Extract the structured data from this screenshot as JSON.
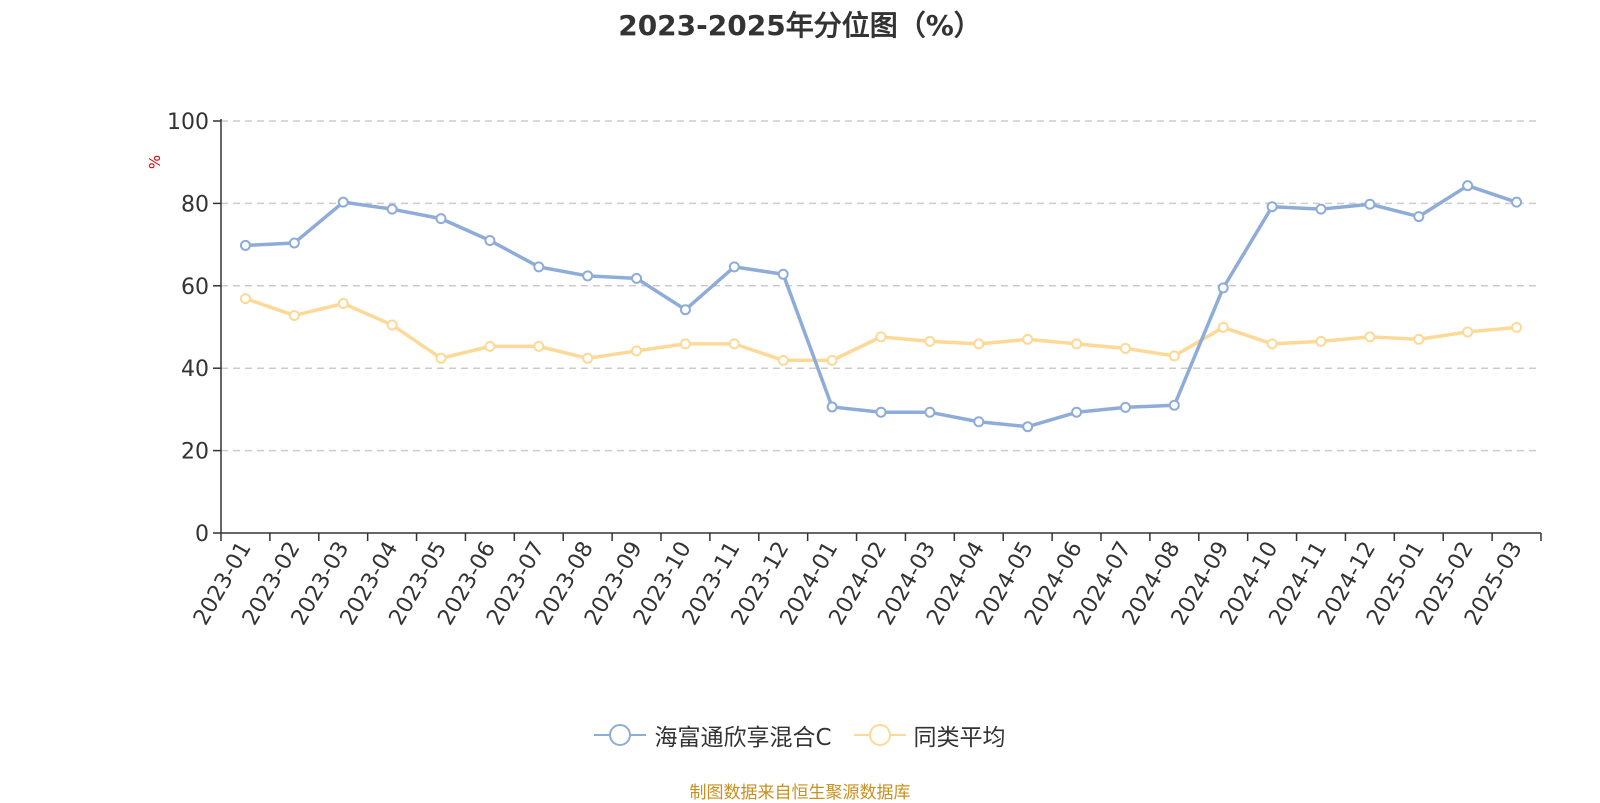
{
  "chart_data": {
    "type": "line",
    "title": "2023-2025年分位图（%）",
    "ylabel": "%",
    "xlabel": "",
    "ylim": [
      0,
      100
    ],
    "yticks": [
      0,
      20,
      40,
      60,
      80,
      100
    ],
    "grid": "horizontal dashed",
    "legend_position": "bottom",
    "categories": [
      "2023-01",
      "2023-02",
      "2023-03",
      "2023-04",
      "2023-05",
      "2023-06",
      "2023-07",
      "2023-08",
      "2023-09",
      "2023-10",
      "2023-11",
      "2023-12",
      "2024-01",
      "2024-02",
      "2024-03",
      "2024-04",
      "2024-05",
      "2024-06",
      "2024-07",
      "2024-08",
      "2024-09",
      "2024-10",
      "2024-11",
      "2024-12",
      "2025-01",
      "2025-02",
      "2025-03"
    ],
    "series": [
      {
        "name": "海富通欣享混合C",
        "color": "#8eacd8",
        "values": [
          69.8,
          70.4,
          80.3,
          78.6,
          76.3,
          71.0,
          64.6,
          62.4,
          61.8,
          54.2,
          64.6,
          62.8,
          30.6,
          29.3,
          29.3,
          27.0,
          25.8,
          29.3,
          30.5,
          31.0,
          59.5,
          79.2,
          78.6,
          79.8,
          76.8,
          84.3,
          80.3
        ]
      },
      {
        "name": "同类平均",
        "color": "#fdd997",
        "values": [
          56.9,
          52.8,
          55.7,
          50.5,
          42.4,
          45.3,
          45.3,
          42.4,
          44.2,
          45.9,
          45.9,
          41.9,
          41.9,
          47.6,
          46.5,
          45.9,
          47.0,
          45.9,
          44.8,
          43.0,
          49.9,
          45.9,
          46.5,
          47.6,
          47.0,
          48.8,
          49.9
        ]
      }
    ]
  },
  "footer": "制图数据来自恒生聚源数据库"
}
